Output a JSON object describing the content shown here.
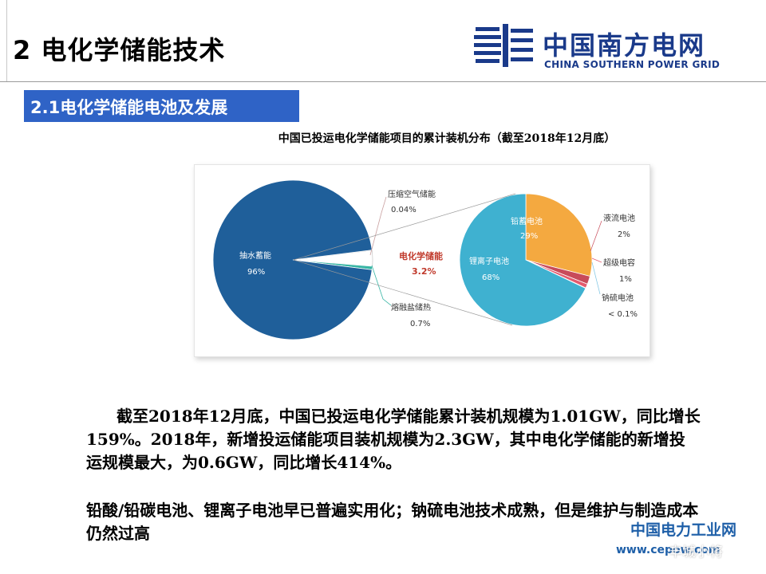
{
  "slide": {
    "title": "2 电化学储能技术",
    "section": "2.1电化学储能电池及发展"
  },
  "logo": {
    "name_cn": "中国南方电网",
    "name_en": "CHINA SOUTHERN POWER GRID"
  },
  "colors": {
    "brand_blue": "#1a3a8a",
    "section_bar": "#2f63c6",
    "pumped_hydro": "#1f5f9a",
    "compressed_air": "#c9a0a0",
    "molten_salt": "#37b5a4",
    "electrochemical_label": "#c0392b",
    "lead": "#f4a940",
    "liion": "#3fb1d0",
    "flow": "#c84b5a",
    "supercap": "#e35b6e",
    "nas": "#7dc4e3"
  },
  "chart_data": {
    "type": "pie",
    "title": "中国已投运电化学储能项目的累计装机分布（截至2018年12月底）",
    "main": {
      "slices": [
        {
          "name": "抽水蓄能",
          "label": "96%",
          "value": 96
        },
        {
          "name": "压缩空气储能",
          "label": "0.04%",
          "value": 0.04
        },
        {
          "name": "电化学储能",
          "label": "3.2%",
          "value": 3.2
        },
        {
          "name": "熔融盐储热",
          "label": "0.7%",
          "value": 0.7
        }
      ]
    },
    "sub": {
      "parent": "电化学储能",
      "slices": [
        {
          "name": "铅蓄电池",
          "label": "29%",
          "value": 29
        },
        {
          "name": "液流电池",
          "label": "2%",
          "value": 2
        },
        {
          "name": "超级电容",
          "label": "1%",
          "value": 1
        },
        {
          "name": "钠硫电池",
          "label": "< 0.1%",
          "value": 0.1
        },
        {
          "name": "锂离子电池",
          "label": "68%",
          "value": 68
        }
      ]
    }
  },
  "body": {
    "para1": "截至2018年12月底，中国已投运电化学储能累计装机规模为1.01GW，同比增长159%。2018年，新增投运储能项目装机规模为2.3GW，其中电化学储能的新增投运规模最大，为0.6GW，同比增长414%。",
    "para2": "铅酸/铅碳电池、锂离子电池早已普遍实用化；钠硫电池技术成熟，但是维护与制造成本仍然过高"
  },
  "watermark": {
    "line1": "中国电力工业网",
    "line2": "www.cepow.com",
    "line3": "丰城小将"
  }
}
